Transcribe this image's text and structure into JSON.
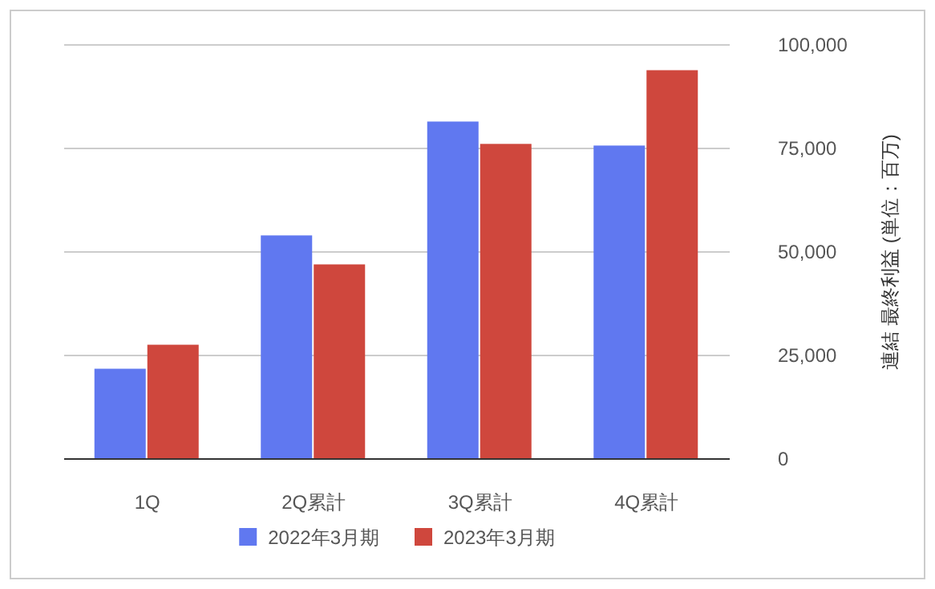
{
  "chart_data": {
    "type": "bar",
    "ylabel": "連結 最終利益 (単位：百万)",
    "categories": [
      "1Q",
      "2Q累計",
      "3Q累計",
      "4Q累計"
    ],
    "series": [
      {
        "name": "2022年3月期",
        "color": "#6078f0",
        "values": [
          21800,
          54000,
          81500,
          75700
        ]
      },
      {
        "name": "2023年3月期",
        "color": "#cf473d",
        "values": [
          27600,
          47000,
          76100,
          93900
        ]
      }
    ],
    "ylim": [
      0,
      100000
    ],
    "yticks": [
      {
        "value": 0,
        "label": "0"
      },
      {
        "value": 25000,
        "label": "25,000"
      },
      {
        "value": 50000,
        "label": "50,000"
      },
      {
        "value": 75000,
        "label": "75,000"
      },
      {
        "value": 100000,
        "label": "100,000"
      }
    ],
    "grid": "y",
    "legend": "bottom"
  }
}
